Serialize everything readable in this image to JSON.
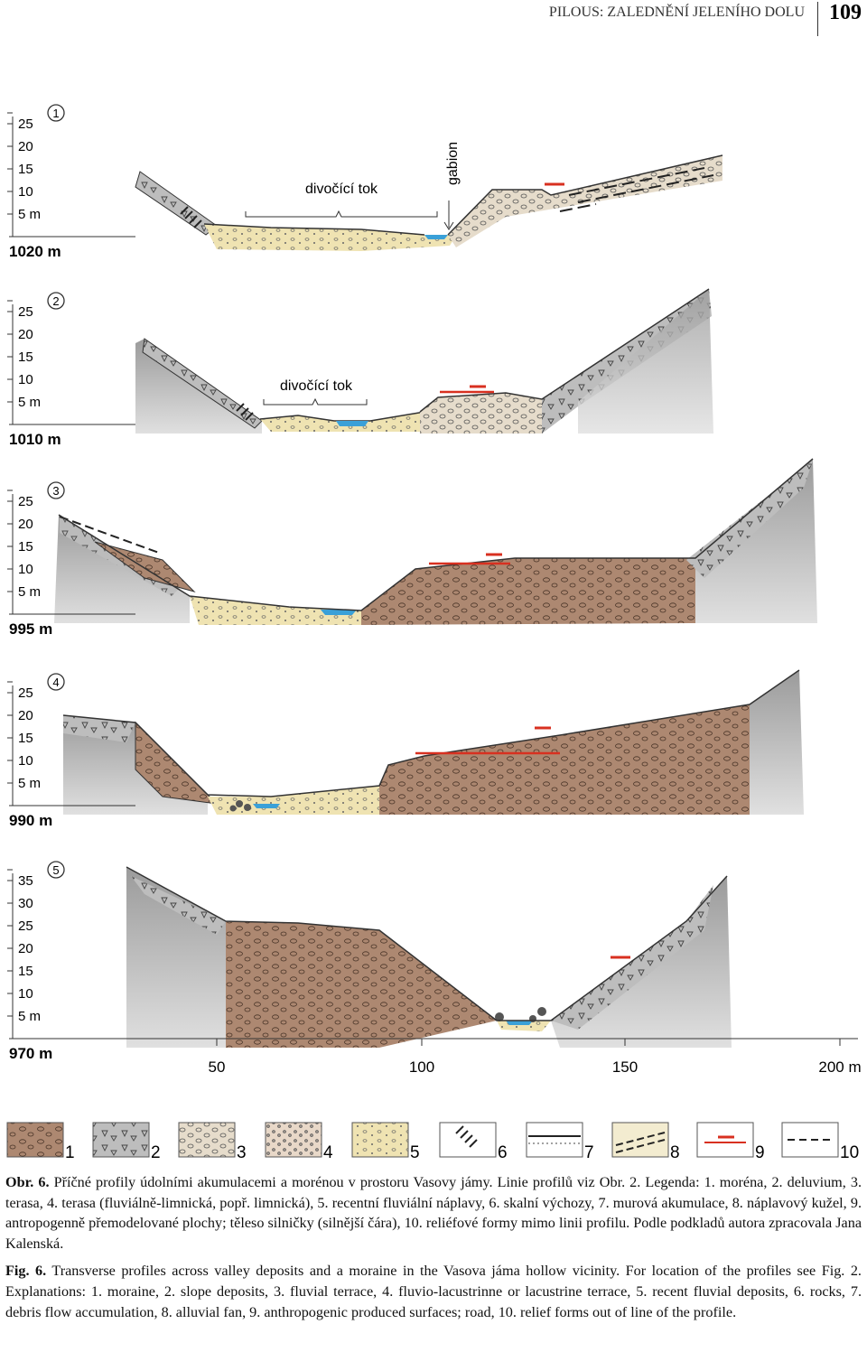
{
  "header": {
    "running_title": "PILOUS: ZALEDNĚNÍ JELENÍHO DOLU",
    "page_number": "109"
  },
  "profiles": [
    {
      "number": "1",
      "base": "1020 m",
      "scale": [
        "25",
        "20",
        "15",
        "10",
        "5 m"
      ],
      "labels": [
        "divočící tok",
        "gabion"
      ]
    },
    {
      "number": "2",
      "base": "1010 m",
      "scale": [
        "25",
        "20",
        "15",
        "10",
        "5 m"
      ],
      "labels": [
        "divočící tok"
      ]
    },
    {
      "number": "3",
      "base": "995 m",
      "scale": [
        "25",
        "20",
        "15",
        "10",
        "5 m"
      ],
      "labels": []
    },
    {
      "number": "4",
      "base": "990 m",
      "scale": [
        "25",
        "20",
        "15",
        "10",
        "5 m"
      ],
      "labels": []
    },
    {
      "number": "5",
      "base": "970 m",
      "scale": [
        "35",
        "30",
        "25",
        "20",
        "15",
        "10",
        "5 m"
      ],
      "labels": []
    }
  ],
  "x_axis": [
    "50",
    "100",
    "150",
    "200 m"
  ],
  "legend": [
    "1",
    "2",
    "3",
    "4",
    "5",
    "6",
    "7",
    "8",
    "9",
    "10"
  ],
  "caption": {
    "czech": {
      "label": "Obr. 6.",
      "text": "Příčné profily údolními akumulacemi a morénou v prostoru Vasovy jámy. Linie profilů viz Obr. 2. Legenda: 1. moréna, 2. deluvium, 3. terasa, 4. terasa (fluviálně-limnická, popř. limnická), 5. recentní fluviální náplavy, 6. skalní výchozy, 7. murová akumulace, 8. náplavový kužel, 9. antropogenně přemodelované plochy; těleso silničky (silnější čára), 10. reliéfové formy mimo linii profilu. Podle podkladů autora zpracovala Jana Kalenská."
    },
    "english": {
      "label": "Fig. 6.",
      "text": "Transverse profiles across valley deposits and a moraine in the Vasova jáma hollow vicinity. For location of the profiles see Fig. 2. Explanations: 1. moraine, 2. slope deposits, 3. fluvial terrace, 4. fluvio-lacustrinne or lacustrine terrace, 5. recent fluvial deposits, 6. rocks, 7. debris flow accumulation, 8. alluvial fan, 9. anthropogenic produced surfaces; road, 10. relief forms out of line of the profile."
    }
  }
}
